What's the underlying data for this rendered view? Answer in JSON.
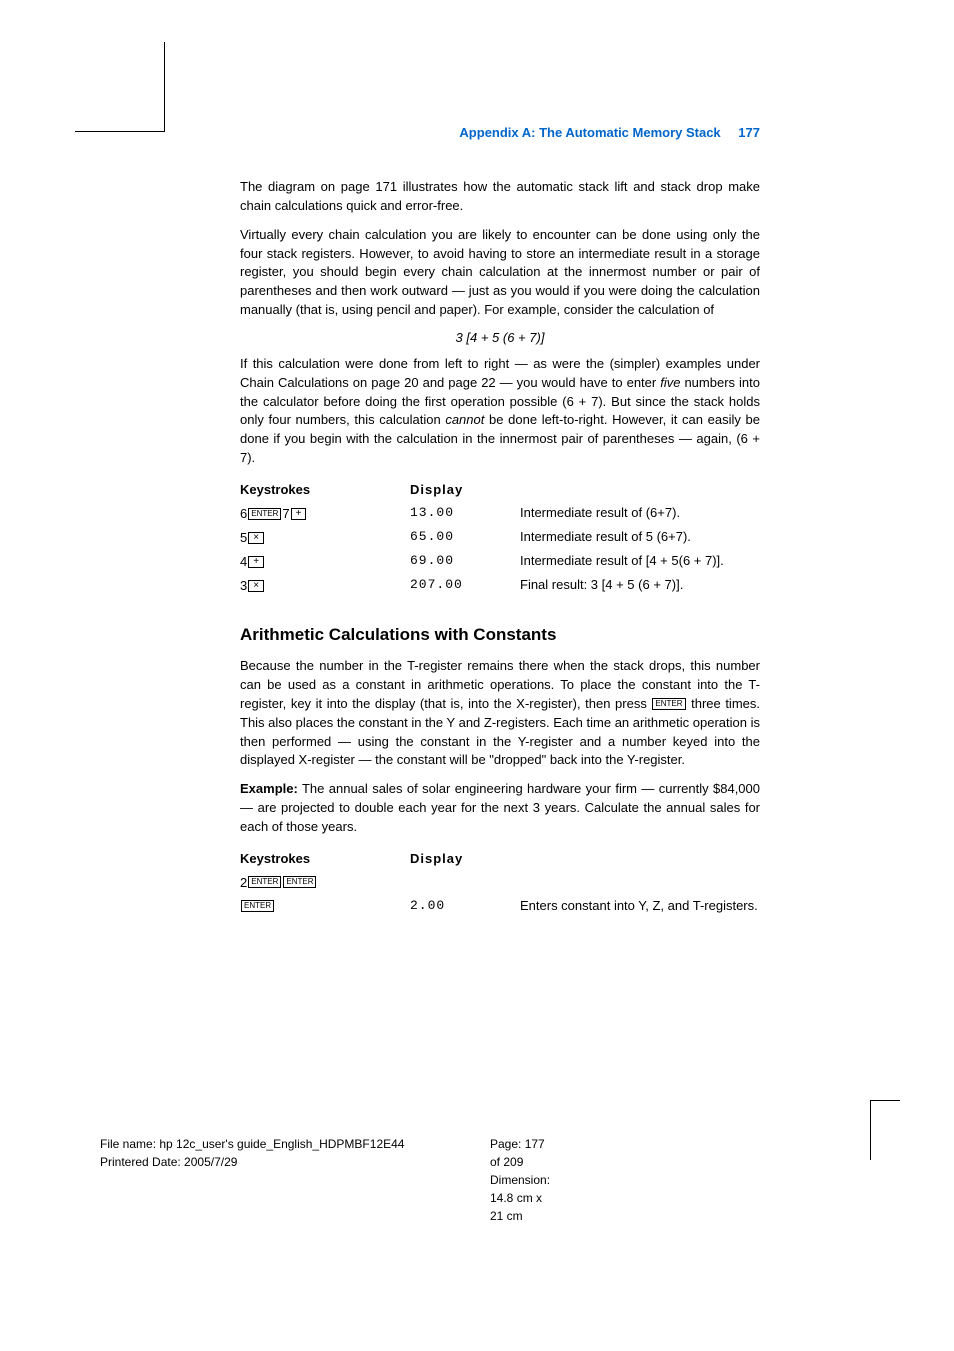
{
  "header": {
    "title": "Appendix A: The Automatic Memory Stack",
    "page_num": "177",
    "color": "#0066cc"
  },
  "para1": "The diagram on page 171 illustrates how the automatic stack lift and stack drop make chain calculations quick and error-free.",
  "para2": "Virtually every chain calculation you are likely to encounter can be done using only the four stack registers. However, to avoid having to store an intermediate result in a storage register, you should begin every chain calculation at the innermost number or pair of parentheses and then work outward — just as you would if you were doing the calculation manually (that is, using pencil and paper). For example, consider the calculation of",
  "formula1": "3 [4 + 5 (6 + 7)]",
  "para3_a": "If this calculation were done from left to right — as were the (simpler) examples under Chain Calculations on page 20 and page 22 — you would have to enter ",
  "para3_ital": "five",
  "para3_b": " numbers into the calculator before doing the first operation possible (6 + 7). But since the stack holds only four numbers, this calculation ",
  "para3_ital2": "cannot",
  "para3_c": " be done left-to-right. However, it can easily be done if you begin with the calculation in the innermost pair of parentheses — again, (6 + 7).",
  "table1": {
    "head_keys": "Keystrokes",
    "head_disp": "Display",
    "rows": [
      {
        "keys": [
          {
            "n": "6"
          },
          {
            "k": "ENTER"
          },
          {
            "n": "7"
          },
          {
            "k": "+",
            "op": true
          }
        ],
        "disp": "13.00",
        "desc": "Intermediate result of (6+7)."
      },
      {
        "keys": [
          {
            "n": "5"
          },
          {
            "k": "×",
            "op": true
          }
        ],
        "disp": "65.00",
        "desc": "Intermediate result of 5 (6+7)."
      },
      {
        "keys": [
          {
            "n": "4"
          },
          {
            "k": "+",
            "op": true
          }
        ],
        "disp": "69.00",
        "desc": "Intermediate result of [4 + 5(6 + 7)]."
      },
      {
        "keys": [
          {
            "n": "3"
          },
          {
            "k": "×",
            "op": true
          }
        ],
        "disp": "207.00",
        "desc": "Final result: 3 [4 + 5 (6 + 7)]."
      }
    ]
  },
  "section_heading": "Arithmetic Calculations with Constants",
  "para4_a": "Because the number in the T-register remains there when the stack drops, this number can be used as a constant in arithmetic operations. To place the constant into the T-register, key it into the display (that is, into the X-register), then press ",
  "para4_key": "ENTER",
  "para4_b": " three times. This also places the constant in the Y and Z-registers. Each time an arithmetic operation is then performed — using the constant in the Y-register and a number keyed into the displayed X-register — the constant will be \"dropped\" back into the Y-register.",
  "example_label": "Example:",
  "example_text": " The annual sales of solar engineering hardware your firm — currently $84,000 — are projected to double each year for the next 3 years. Calculate the annual sales for each of those years.",
  "table2": {
    "head_keys": "Keystrokes",
    "head_disp": "Display",
    "rows": [
      {
        "keys": [
          {
            "n": "2"
          },
          {
            "k": "ENTER"
          },
          {
            "k": "ENTER"
          }
        ],
        "disp": "",
        "desc": ""
      },
      {
        "keys": [
          {
            "k": "ENTER"
          }
        ],
        "disp": "2.00",
        "desc": "Enters constant into Y, Z, and T-registers."
      }
    ]
  },
  "footer": {
    "filename_label": "File name: ",
    "filename": "hp 12c_user's guide_English_HDPMBF12E44",
    "date_label": "Printered Date: ",
    "date": "2005/7/29",
    "page_label": "Page: ",
    "page": "177 of 209",
    "dim_label": "Dimension: ",
    "dim": "14.8 cm x 21 cm"
  }
}
